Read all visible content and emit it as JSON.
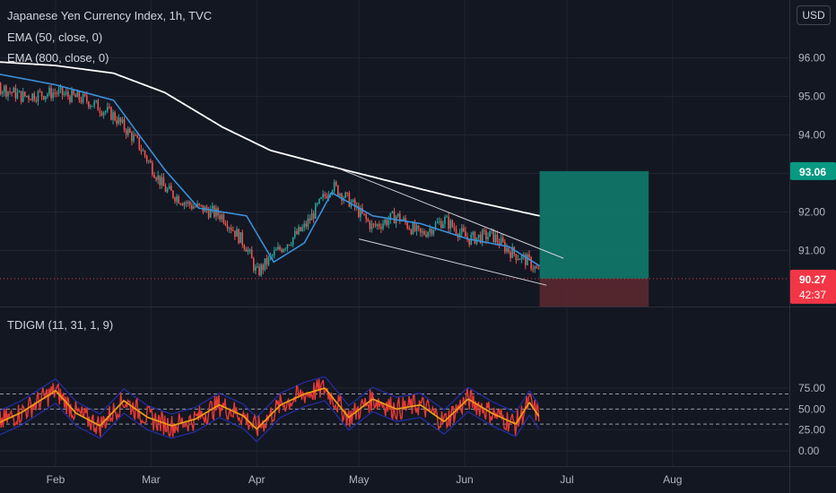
{
  "header": {
    "title": "Japanese Yen Currency Index, 1h, TVC",
    "ema1": "EMA (50, close, 0)",
    "ema2": "EMA (800, close, 0)",
    "currency_button": "USD"
  },
  "oscillator": {
    "label": "TDIGM (11, 31, 1, 9)"
  },
  "colors": {
    "background": "#131722",
    "grid": "#1f2433",
    "ema50": "#3a8fd9",
    "ema800": "#ffffff",
    "profit_zone": "#0f7a6a",
    "loss_zone": "#5b2830",
    "target_label": "#089981",
    "price_label": "#f23645",
    "rsi_red": "#e53935",
    "rsi_orange": "#f59c1a",
    "band_blue": "#2b34c9",
    "band_green": "#1d6e2a"
  },
  "chart_data": [
    {
      "type": "line",
      "title": "Japanese Yen Currency Index, 1h, TVC",
      "y_axis": {
        "ticks": [
          "96.00",
          "95.00",
          "94.00",
          "93.00",
          "92.00",
          "91.00"
        ],
        "range": [
          89.3,
          97.3
        ]
      },
      "x_axis": {
        "ticks": [
          "Feb",
          "Mar",
          "Apr",
          "May",
          "Jun",
          "Jul",
          "Aug"
        ]
      },
      "price_anchor_points": [
        {
          "date": "2021-01-01",
          "value": 96.2
        },
        {
          "date": "2021-01-08",
          "value": 95.9
        },
        {
          "date": "2021-01-14",
          "value": 95.3
        },
        {
          "date": "2021-01-22",
          "value": 95.0
        },
        {
          "date": "2021-02-01",
          "value": 95.1
        },
        {
          "date": "2021-02-10",
          "value": 94.9
        },
        {
          "date": "2021-02-18",
          "value": 94.5
        },
        {
          "date": "2021-02-25",
          "value": 93.8
        },
        {
          "date": "2021-03-05",
          "value": 92.6
        },
        {
          "date": "2021-03-12",
          "value": 92.2
        },
        {
          "date": "2021-03-22",
          "value": 91.9
        },
        {
          "date": "2021-03-29",
          "value": 91.1
        },
        {
          "date": "2021-04-01",
          "value": 90.4
        },
        {
          "date": "2021-04-06",
          "value": 90.9
        },
        {
          "date": "2021-04-15",
          "value": 91.6
        },
        {
          "date": "2021-04-23",
          "value": 92.7
        },
        {
          "date": "2021-04-28",
          "value": 92.3
        },
        {
          "date": "2021-05-05",
          "value": 91.6
        },
        {
          "date": "2021-05-12",
          "value": 91.9
        },
        {
          "date": "2021-05-19",
          "value": 91.4
        },
        {
          "date": "2021-05-26",
          "value": 91.8
        },
        {
          "date": "2021-06-02",
          "value": 91.3
        },
        {
          "date": "2021-06-09",
          "value": 91.4
        },
        {
          "date": "2021-06-14",
          "value": 91.0
        },
        {
          "date": "2021-06-20",
          "value": 90.7
        },
        {
          "date": "2021-06-23",
          "value": 90.4
        }
      ],
      "ema50_points": [
        {
          "date": "2021-01-01",
          "value": 96.4
        },
        {
          "date": "2021-01-14",
          "value": 95.6
        },
        {
          "date": "2021-02-01",
          "value": 95.3
        },
        {
          "date": "2021-02-18",
          "value": 94.9
        },
        {
          "date": "2021-03-05",
          "value": 93.1
        },
        {
          "date": "2021-03-15",
          "value": 92.1
        },
        {
          "date": "2021-03-29",
          "value": 91.9
        },
        {
          "date": "2021-04-06",
          "value": 90.7
        },
        {
          "date": "2021-04-15",
          "value": 91.2
        },
        {
          "date": "2021-04-23",
          "value": 92.5
        },
        {
          "date": "2021-05-05",
          "value": 91.9
        },
        {
          "date": "2021-05-19",
          "value": 91.7
        },
        {
          "date": "2021-06-02",
          "value": 91.3
        },
        {
          "date": "2021-06-14",
          "value": 91.1
        },
        {
          "date": "2021-06-23",
          "value": 90.6
        }
      ],
      "ema800_points": [
        {
          "date": "2021-01-01",
          "value": 95.8
        },
        {
          "date": "2021-01-14",
          "value": 95.9
        },
        {
          "date": "2021-02-01",
          "value": 95.8
        },
        {
          "date": "2021-02-18",
          "value": 95.6
        },
        {
          "date": "2021-03-05",
          "value": 95.1
        },
        {
          "date": "2021-03-22",
          "value": 94.2
        },
        {
          "date": "2021-04-05",
          "value": 93.6
        },
        {
          "date": "2021-04-22",
          "value": 93.2
        },
        {
          "date": "2021-05-10",
          "value": 92.8
        },
        {
          "date": "2021-05-28",
          "value": 92.4
        },
        {
          "date": "2021-06-23",
          "value": 91.9
        }
      ],
      "trend_channel": {
        "upper": [
          {
            "date": "2021-04-23",
            "value": 93.2
          },
          {
            "date": "2021-06-30",
            "value": 90.8
          }
        ],
        "lower": [
          {
            "date": "2021-05-01",
            "value": 91.3
          },
          {
            "date": "2021-06-25",
            "value": 90.1
          }
        ]
      },
      "position": {
        "entry": 90.27,
        "target": 93.06,
        "stop": 89.6,
        "start_date": "2021-06-23",
        "end_date": "2021-07-25"
      },
      "labels": {
        "target": "93.06",
        "price": "90.27",
        "countdown": "42:37"
      }
    },
    {
      "type": "line",
      "title": "TDIGM (11, 31, 1, 9)",
      "y_axis": {
        "ticks": [
          "75.00",
          "50.00",
          "25.00",
          "0.00"
        ],
        "range": [
          -5,
          90
        ]
      },
      "levels": [
        68,
        50,
        32
      ],
      "rsi_anchor_points": [
        {
          "date": "2021-01-01",
          "value": 56
        },
        {
          "date": "2021-01-08",
          "value": 40
        },
        {
          "date": "2021-01-15",
          "value": 33
        },
        {
          "date": "2021-01-22",
          "value": 46
        },
        {
          "date": "2021-02-01",
          "value": 72
        },
        {
          "date": "2021-02-07",
          "value": 45
        },
        {
          "date": "2021-02-14",
          "value": 30
        },
        {
          "date": "2021-02-21",
          "value": 60
        },
        {
          "date": "2021-02-28",
          "value": 40
        },
        {
          "date": "2021-03-07",
          "value": 30
        },
        {
          "date": "2021-03-14",
          "value": 38
        },
        {
          "date": "2021-03-21",
          "value": 55
        },
        {
          "date": "2021-03-28",
          "value": 42
        },
        {
          "date": "2021-04-01",
          "value": 26
        },
        {
          "date": "2021-04-08",
          "value": 55
        },
        {
          "date": "2021-04-15",
          "value": 68
        },
        {
          "date": "2021-04-21",
          "value": 75
        },
        {
          "date": "2021-04-28",
          "value": 40
        },
        {
          "date": "2021-05-05",
          "value": 62
        },
        {
          "date": "2021-05-12",
          "value": 50
        },
        {
          "date": "2021-05-19",
          "value": 55
        },
        {
          "date": "2021-05-26",
          "value": 35
        },
        {
          "date": "2021-06-02",
          "value": 62
        },
        {
          "date": "2021-06-09",
          "value": 45
        },
        {
          "date": "2021-06-16",
          "value": 32
        },
        {
          "date": "2021-06-20",
          "value": 58
        },
        {
          "date": "2021-06-23",
          "value": 40
        }
      ]
    }
  ]
}
